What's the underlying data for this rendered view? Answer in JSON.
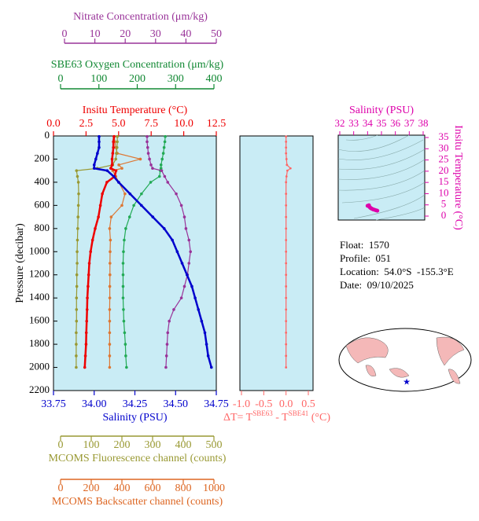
{
  "chart_data": [
    {
      "type": "profile",
      "ylabel": "Pressure (decibar)",
      "ylim": [
        0,
        2200
      ],
      "y_reversed": true,
      "yticks": [
        0,
        200,
        400,
        600,
        800,
        1000,
        1200,
        1400,
        1600,
        1800,
        2000,
        2200
      ],
      "y": [
        5,
        50,
        100,
        150,
        200,
        250,
        280,
        300,
        350,
        400,
        500,
        600,
        700,
        800,
        900,
        1000,
        1100,
        1200,
        1300,
        1400,
        1500,
        1600,
        1700,
        1800,
        1900,
        2000
      ],
      "x_axes": [
        {
          "label": "Nitrate Concentration (μm/kg)",
          "color": "#993399",
          "xlim": [
            0,
            50
          ],
          "xticks": [
            0,
            10,
            20,
            30,
            40,
            50
          ]
        },
        {
          "label": "SBE63 Oxygen Concentration (μm/kg)",
          "color": "#118833",
          "xlim": [
            0,
            400
          ],
          "xticks": [
            0,
            100,
            200,
            300,
            400
          ]
        },
        {
          "label": "Insitu Temperature (°C)",
          "color": "#ee0000",
          "xlim": [
            0,
            12.5
          ],
          "xticks": [
            {
              "value": 0,
              "label": "0.0"
            },
            2.5,
            {
              "value": 5,
              "label": "5.0"
            },
            7.5,
            {
              "value": 10,
              "label": "10.0"
            },
            12.5
          ]
        },
        {
          "label": "Salinity (PSU)",
          "color": "#0000cc",
          "xlim": [
            33.75,
            34.75
          ],
          "xticks": [
            33.75,
            {
              "value": 34,
              "label": "34.00"
            },
            34.25,
            {
              "value": 34.5,
              "label": "34.50"
            },
            34.75
          ]
        },
        {
          "label": "MCOMS Fluorescence channel (counts)",
          "color": "#999933",
          "xlim": [
            0,
            500
          ],
          "xticks": [
            0,
            100,
            200,
            300,
            400,
            500
          ]
        },
        {
          "label": "MCOMS Backscatter channel (counts)",
          "color": "#dd6622",
          "xlim": [
            0,
            1000
          ],
          "xticks": [
            0,
            200,
            400,
            600,
            800,
            1000
          ]
        }
      ],
      "series": [
        {
          "axis": 5,
          "color": "#dd7733",
          "values": [
            349,
            355,
            360,
            370,
            520,
            380,
            400,
            340,
            360,
            380,
            420,
            400,
            330,
            320,
            325,
            323,
            322,
            322,
            321,
            321,
            320,
            320,
            320,
            320,
            320,
            320
          ]
        },
        {
          "axis": 4,
          "color": "#999933",
          "values": [
            185,
            185,
            184,
            182,
            180,
            170,
            120,
            52,
            55,
            58,
            59,
            58,
            57,
            56,
            55,
            54,
            54,
            53,
            53,
            52,
            52,
            52,
            51,
            51,
            51,
            51
          ]
        },
        {
          "axis": 1,
          "color": "#22aa55",
          "values": [
            273,
            272,
            270,
            268,
            265,
            262,
            262,
            260,
            258,
            235,
            211,
            191,
            180,
            170,
            166,
            164,
            163,
            163,
            163,
            163,
            164,
            165,
            167,
            169,
            170,
            172
          ]
        },
        {
          "axis": 0,
          "color": "#993399",
          "values": [
            27.2,
            27.2,
            27.4,
            27.6,
            28,
            28.5,
            29,
            32,
            33,
            34,
            36.8,
            38.5,
            39.5,
            40,
            41,
            41.5,
            41,
            40.5,
            39.5,
            38.5,
            36,
            34.5,
            34,
            33.8,
            33.6,
            33.4
          ]
        },
        {
          "axis": 2,
          "color": "#ee0000",
          "values": [
            4.65,
            4.6,
            4.6,
            4.55,
            4.5,
            4.5,
            4.4,
            4.8,
            4.7,
            4.1,
            3.75,
            3.6,
            3.45,
            3.2,
            3.0,
            2.85,
            2.75,
            2.7,
            2.65,
            2.6,
            2.58,
            2.55,
            2.52,
            2.5,
            2.45,
            2.4
          ]
        },
        {
          "axis": 3,
          "color": "#0000cc",
          "values": [
            34.03,
            34.03,
            34.03,
            34.02,
            34.01,
            34.0,
            34.0,
            34.08,
            34.12,
            34.15,
            34.22,
            34.29,
            34.36,
            34.43,
            34.48,
            34.51,
            34.54,
            34.57,
            34.6,
            34.62,
            34.64,
            34.66,
            34.68,
            34.69,
            34.7,
            34.72
          ]
        }
      ]
    },
    {
      "type": "profile-delta",
      "xlabel": [
        "ΔT= T",
        "SBE63",
        " - T",
        "SBE41",
        " (°C)"
      ],
      "color": "#ff6666",
      "xlim": [
        -1,
        0.5
      ],
      "xticks": [
        {
          "value": -1,
          "label": "-1.0"
        },
        {
          "value": -0.5,
          "label": "-0.5"
        },
        {
          "value": 0,
          "label": "0.0"
        },
        0.5
      ],
      "values": [
        0,
        0,
        0,
        0,
        0.01,
        0.02,
        0.1,
        0.03,
        0.01,
        0,
        0,
        0,
        0,
        0,
        0,
        0,
        0,
        0,
        0,
        0,
        0,
        0,
        0,
        0,
        0,
        0
      ]
    },
    {
      "type": "scatter",
      "title": "Salinity (PSU)",
      "ylabel": "Insitu Temperature (°C)",
      "color": "#dd00aa",
      "xlim": [
        32,
        38
      ],
      "xticks": [
        32,
        33,
        34,
        35,
        36,
        37,
        38
      ],
      "ylim": [
        0,
        35
      ],
      "yticks": [
        0,
        5,
        10,
        15,
        20,
        25,
        30,
        35
      ],
      "x": [
        34.0,
        34.05,
        34.1,
        34.15,
        34.2,
        34.25,
        34.3,
        34.4,
        34.5,
        34.6,
        34.7
      ],
      "y": [
        4.6,
        4.5,
        4.8,
        4.0,
        3.7,
        3.5,
        3.3,
        3.0,
        2.8,
        2.6,
        2.4
      ]
    }
  ],
  "info": [
    "Float:  1570",
    "Profile:  051",
    "Location:  54.0°S  -155.3°E",
    "Date:  09/10/2025"
  ]
}
